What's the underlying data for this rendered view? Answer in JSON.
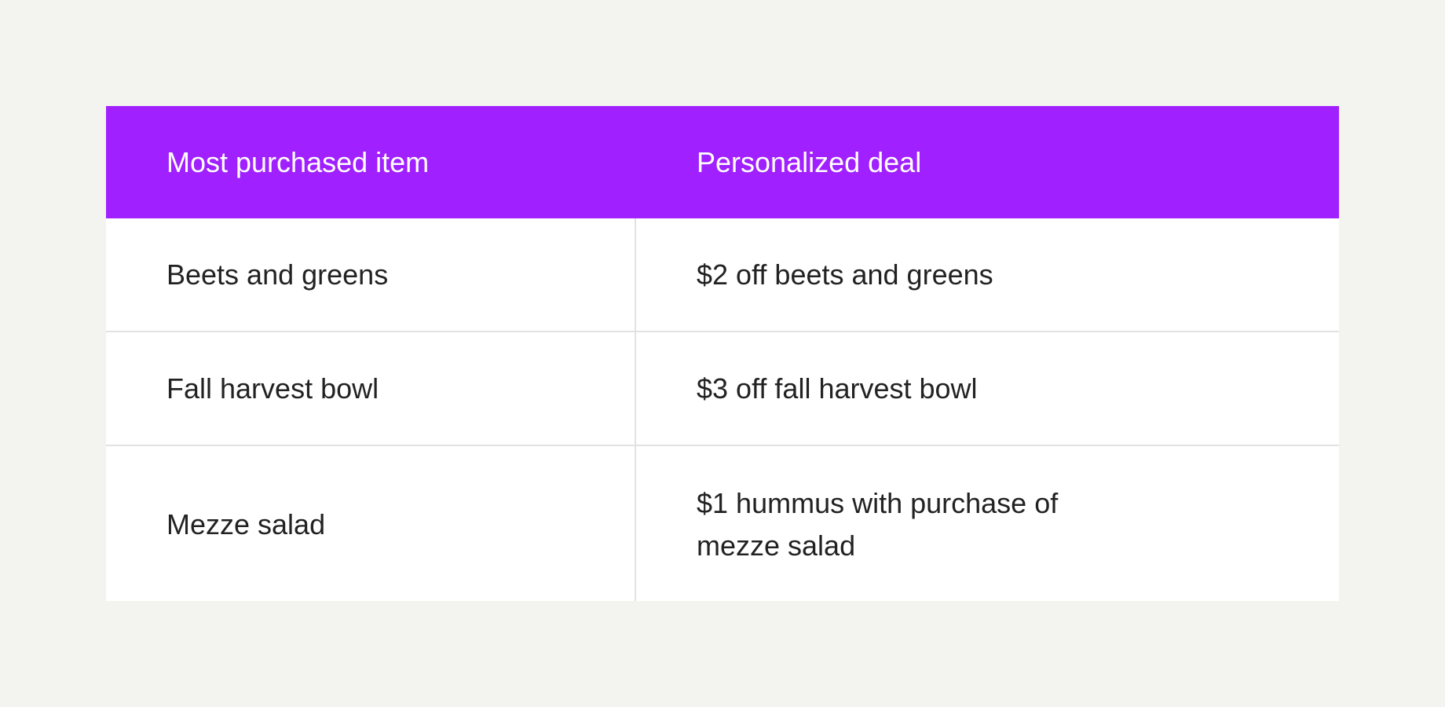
{
  "table": {
    "headers": [
      "Most purchased item",
      "Personalized deal"
    ],
    "rows": [
      [
        "Beets and greens",
        "$2 off beets and greens"
      ],
      [
        "Fall harvest bowl",
        "$3 off fall harvest bowl"
      ],
      [
        "Mezze salad",
        "$1 hummus with purchase of mezze salad"
      ]
    ],
    "header_color": "#a020ff"
  }
}
